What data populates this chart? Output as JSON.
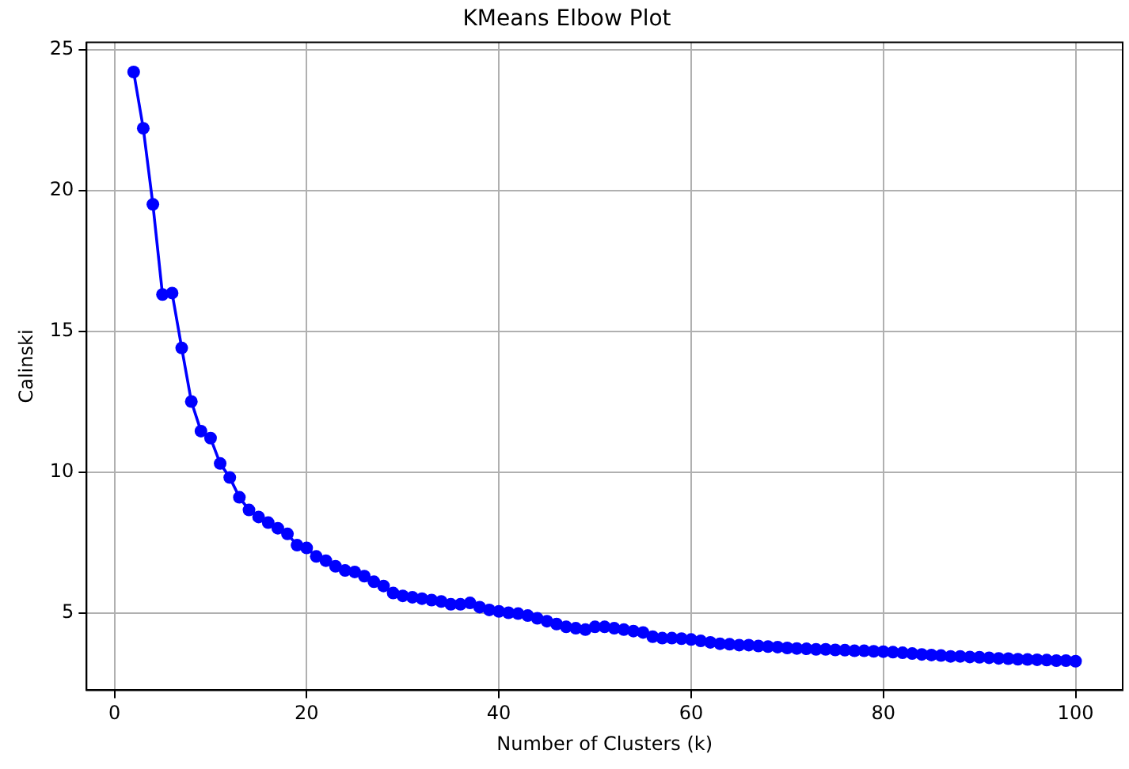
{
  "chart_data": {
    "type": "line",
    "title": "KMeans Elbow Plot",
    "xlabel": "Number of Clusters (k)",
    "ylabel": "Calinski",
    "x": [
      2,
      3,
      4,
      5,
      6,
      7,
      8,
      9,
      10,
      11,
      12,
      13,
      14,
      15,
      16,
      17,
      18,
      19,
      20,
      21,
      22,
      23,
      24,
      25,
      26,
      27,
      28,
      29,
      30,
      31,
      32,
      33,
      34,
      35,
      36,
      37,
      38,
      39,
      40,
      41,
      42,
      43,
      44,
      45,
      46,
      47,
      48,
      49,
      50,
      51,
      52,
      53,
      54,
      55,
      56,
      57,
      58,
      59,
      60,
      61,
      62,
      63,
      64,
      65,
      66,
      67,
      68,
      69,
      70,
      71,
      72,
      73,
      74,
      75,
      76,
      77,
      78,
      79,
      80,
      81,
      82,
      83,
      84,
      85,
      86,
      87,
      88,
      89,
      90,
      91,
      92,
      93,
      94,
      95,
      96,
      97,
      98,
      99,
      100
    ],
    "series": [
      {
        "color": "#0000ff",
        "values": [
          24.2,
          22.2,
          19.5,
          16.3,
          16.35,
          14.4,
          12.5,
          11.45,
          11.2,
          10.3,
          9.8,
          9.1,
          8.65,
          8.4,
          8.2,
          8.0,
          7.8,
          7.4,
          7.3,
          7.0,
          6.85,
          6.65,
          6.5,
          6.45,
          6.3,
          6.1,
          5.95,
          5.7,
          5.6,
          5.55,
          5.5,
          5.45,
          5.4,
          5.3,
          5.3,
          5.35,
          5.2,
          5.1,
          5.05,
          5.0,
          4.97,
          4.9,
          4.8,
          4.7,
          4.6,
          4.5,
          4.45,
          4.4,
          4.5,
          4.5,
          4.45,
          4.4,
          4.35,
          4.3,
          4.15,
          4.1,
          4.1,
          4.08,
          4.05,
          4.0,
          3.95,
          3.9,
          3.88,
          3.85,
          3.85,
          3.82,
          3.8,
          3.78,
          3.75,
          3.73,
          3.72,
          3.7,
          3.7,
          3.68,
          3.67,
          3.65,
          3.65,
          3.63,
          3.62,
          3.6,
          3.58,
          3.55,
          3.52,
          3.5,
          3.48,
          3.45,
          3.45,
          3.43,
          3.42,
          3.4,
          3.38,
          3.37,
          3.35,
          3.34,
          3.33,
          3.32,
          3.3,
          3.3,
          3.28
        ]
      }
    ],
    "xlim": [
      -2.9,
      104.9
    ],
    "ylim": [
      2.25,
      25.25
    ],
    "xticks": [
      0,
      20,
      40,
      60,
      80,
      100
    ],
    "yticks": [
      5,
      10,
      15,
      20,
      25
    ],
    "grid": true,
    "marker": "circle",
    "line_style": "solid",
    "legend": false
  }
}
